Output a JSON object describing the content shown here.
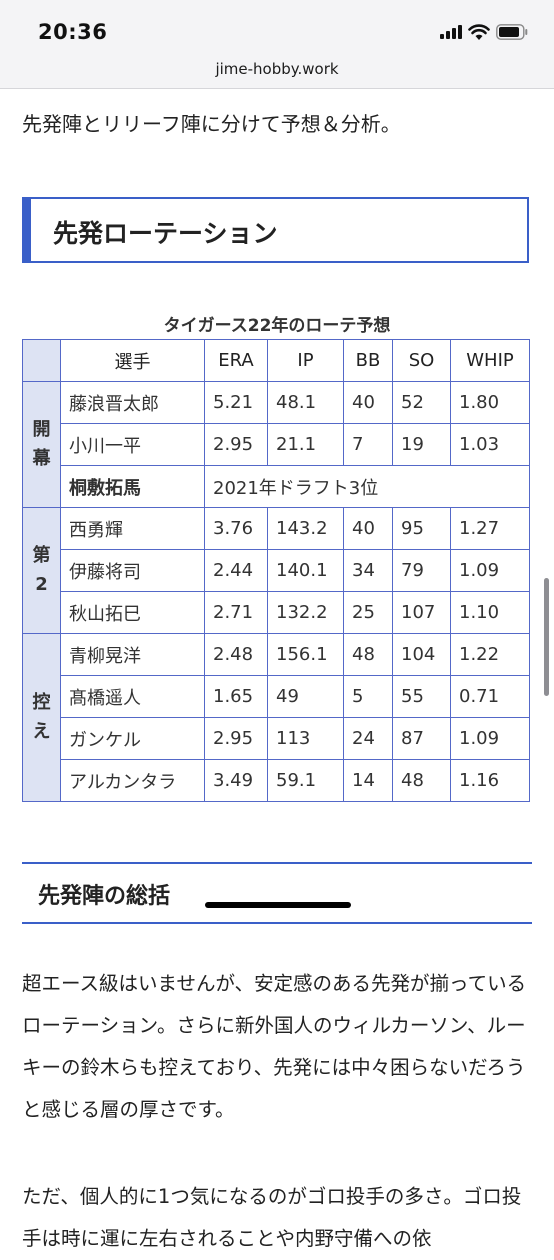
{
  "status_bar": {
    "time": "20:36"
  },
  "browser": {
    "url": "jime-hobby.work"
  },
  "article": {
    "intro": "先発陣とリリーフ陣に分けて予想＆分析。",
    "section_title": "先発ローテーション",
    "table": {
      "caption": "タイガース22年のローテ予想",
      "headers": [
        "選手",
        "ERA",
        "IP",
        "BB",
        "SO",
        "WHIP"
      ],
      "groups": [
        {
          "label_lines": [
            "開",
            "幕"
          ]
        },
        {
          "label_lines": [
            "第",
            "2"
          ]
        },
        {
          "label_lines": [
            "控",
            "え"
          ]
        }
      ],
      "rows": [
        {
          "name": "藤浪晋太郎",
          "era": "5.21",
          "ip": "48.1",
          "bb": "40",
          "so": "52",
          "whip": "1.80"
        },
        {
          "name": "小川一平",
          "era": "2.95",
          "ip": "21.1",
          "bb": "7",
          "so": "19",
          "whip": "1.03"
        },
        {
          "name": "桐敷拓馬",
          "note": "2021年ドラフト3位"
        },
        {
          "name": "西勇輝",
          "era": "3.76",
          "ip": "143.2",
          "bb": "40",
          "so": "95",
          "whip": "1.27"
        },
        {
          "name": "伊藤将司",
          "era": "2.44",
          "ip": "140.1",
          "bb": "34",
          "so": "79",
          "whip": "1.09"
        },
        {
          "name": "秋山拓巳",
          "era": "2.71",
          "ip": "132.2",
          "bb": "25",
          "so": "107",
          "whip": "1.10"
        },
        {
          "name": "青柳晃洋",
          "era": "2.48",
          "ip": "156.1",
          "bb": "48",
          "so": "104",
          "whip": "1.22"
        },
        {
          "name": "髙橋遥人",
          "era": "1.65",
          "ip": "49",
          "bb": "5",
          "so": "55",
          "whip": "0.71"
        },
        {
          "name": "ガンケル",
          "era": "2.95",
          "ip": "113",
          "bb": "24",
          "so": "87",
          "whip": "1.09"
        },
        {
          "name": "アルカンタラ",
          "era": "3.49",
          "ip": "59.1",
          "bb": "14",
          "so": "48",
          "whip": "1.16"
        }
      ]
    },
    "subsection_title": "先発陣の総括",
    "paragraph1": "超エース級はいませんが、安定感のある先発が揃っているローテーション。さらに新外国人のウィルカーソン、ルーキーの鈴木らも控えており、先発には中々困らないだろうと感じる層の厚さです。",
    "paragraph2": "ただ、個人的に1つ気になるのがゴロ投手の多さ。ゴロ投手は時に運に左右されることや内野守備への依"
  },
  "colors": {
    "accent": "#3a5fc8",
    "highlight_red": "#d8232a",
    "group_bg": "#dde3f3"
  }
}
